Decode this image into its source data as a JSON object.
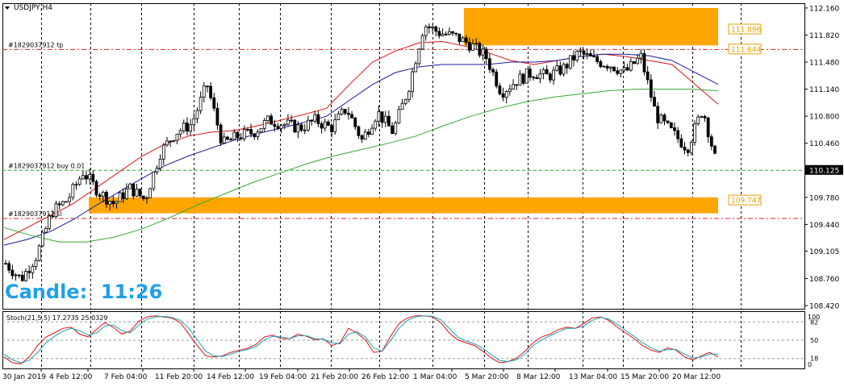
{
  "chart_data": [
    {
      "type": "candlestick",
      "title": "USDJPY,H4",
      "symbol": "USDJPY",
      "timeframe": "H4",
      "ylim": [
        108.38,
        112.22
      ],
      "y_ticks": [
        "112.160",
        "111.820",
        "111.480",
        "111.140",
        "110.800",
        "110.460",
        "110.125",
        "109.780",
        "109.440",
        "109.105",
        "108.760",
        "108.420"
      ],
      "x_ticks": [
        "30 Jan 2019",
        "4 Feb 12:00",
        "7 Feb 04:00",
        "11 Feb 20:00",
        "14 Feb 12:00",
        "19 Feb 04:00",
        "21 Feb 20:00",
        "26 Feb 12:00",
        "1 Mar 04:00",
        "5 Mar 20:00",
        "8 Mar 12:00",
        "13 Mar 04:00",
        "15 Mar 20:00",
        "20 Mar 12:00"
      ],
      "current_price": "110.125",
      "close_path": [
        108.95,
        108.75,
        109.05,
        109.6,
        109.75,
        110.1,
        109.85,
        109.7,
        109.9,
        109.75,
        110.35,
        110.6,
        110.7,
        111.2,
        110.45,
        110.55,
        110.6,
        110.75,
        110.7,
        110.65,
        110.75,
        110.65,
        110.9,
        110.5,
        110.85,
        110.6,
        111.15,
        111.95,
        111.85,
        111.8,
        111.7,
        111.55,
        111.1,
        111.25,
        111.35,
        111.3,
        111.4,
        111.6,
        111.5,
        111.45,
        111.35,
        111.55,
        110.8,
        110.6,
        110.4,
        110.9,
        110.1
      ],
      "moving_averages": [
        {
          "color": "#dd1111",
          "values": [
            109.25,
            109.4,
            109.55,
            109.7,
            109.9,
            110.1,
            110.3,
            110.45,
            110.55,
            110.6,
            110.62,
            110.68,
            110.75,
            110.82,
            110.9,
            111.2,
            111.48,
            111.62,
            111.72,
            111.74,
            111.68,
            111.6,
            111.5,
            111.45,
            111.5,
            111.55,
            111.58,
            111.55,
            111.5,
            111.45,
            111.2,
            110.95
          ]
        },
        {
          "color": "#1a1aa0",
          "values": [
            109.18,
            109.25,
            109.35,
            109.5,
            109.68,
            109.85,
            110.02,
            110.18,
            110.3,
            110.4,
            110.5,
            110.58,
            110.65,
            110.72,
            110.8,
            111.0,
            111.2,
            111.35,
            111.42,
            111.45,
            111.45,
            111.45,
            111.48,
            111.48,
            111.5,
            111.55,
            111.58,
            111.58,
            111.56,
            111.5,
            111.35,
            111.2
          ]
        },
        {
          "color": "#33aa33",
          "values": [
            109.4,
            109.3,
            109.22,
            109.22,
            109.28,
            109.38,
            109.52,
            109.68,
            109.82,
            109.96,
            110.08,
            110.2,
            110.3,
            110.38,
            110.46,
            110.55,
            110.68,
            110.8,
            110.9,
            110.98,
            111.04,
            111.08,
            111.12,
            111.14,
            111.14,
            111.14,
            111.12
          ]
        }
      ],
      "trade_lines": [
        {
          "label": "#1829037912 tp",
          "price": 111.644,
          "color": "#dd2222"
        },
        {
          "label": "#1829037912 buy 0.01",
          "price": 110.125,
          "color": "#22aa22"
        },
        {
          "label": "#1829037912 sl",
          "price": 109.52,
          "color": "#dd2222"
        }
      ],
      "zones": [
        {
          "from": 111.69,
          "to": 112.16,
          "color": "#ffa500",
          "price_labels": [
            "111.896",
            "111.644"
          ]
        },
        {
          "from": 109.58,
          "to": 109.78,
          "color": "#ffa500",
          "price_labels": [
            "109.747"
          ]
        }
      ],
      "grid": true,
      "timer": {
        "label": "Candle:",
        "value": "11:26",
        "color": "#1ea0e8"
      }
    },
    {
      "type": "line",
      "title": "Stoch(21,5,5) 17.2735 25.0329",
      "ylim": [
        0,
        100
      ],
      "y_ticks": [
        "82",
        "50",
        "18"
      ],
      "y_max_label": "100",
      "y_min_label": "0",
      "levels": [
        82,
        50,
        18
      ],
      "series": [
        {
          "color": "#dd1111",
          "values": [
            20,
            10,
            8,
            20,
            40,
            55,
            62,
            70,
            72,
            60,
            55,
            68,
            80,
            72,
            60,
            65,
            82,
            90,
            92,
            90,
            88,
            80,
            60,
            40,
            22,
            20,
            22,
            28,
            32,
            35,
            42,
            55,
            58,
            52,
            52,
            60,
            56,
            50,
            52,
            40,
            45,
            70,
            62,
            50,
            28,
            30,
            56,
            78,
            88,
            92,
            92,
            90,
            80,
            62,
            50,
            45,
            40,
            30,
            18,
            10,
            12,
            18,
            30,
            45,
            55,
            60,
            68,
            72,
            70,
            78,
            88,
            90,
            84,
            72,
            62,
            52,
            40,
            32,
            28,
            36,
            32,
            20,
            15,
            22,
            28,
            20
          ]
        },
        {
          "color": "#19a3b8",
          "values": [
            25,
            15,
            10,
            14,
            28,
            45,
            56,
            65,
            70,
            66,
            58,
            62,
            74,
            76,
            66,
            62,
            75,
            86,
            90,
            91,
            89,
            84,
            70,
            50,
            30,
            22,
            21,
            25,
            30,
            33,
            38,
            50,
            56,
            55,
            52,
            57,
            57,
            52,
            51,
            45,
            43,
            60,
            64,
            55,
            36,
            30,
            48,
            70,
            84,
            90,
            92,
            91,
            85,
            70,
            55,
            48,
            43,
            35,
            24,
            14,
            12,
            15,
            25,
            40,
            50,
            57,
            64,
            70,
            70,
            74,
            84,
            89,
            86,
            77,
            66,
            56,
            45,
            36,
            30,
            33,
            33,
            25,
            18,
            20,
            25,
            25
          ]
        }
      ]
    }
  ]
}
